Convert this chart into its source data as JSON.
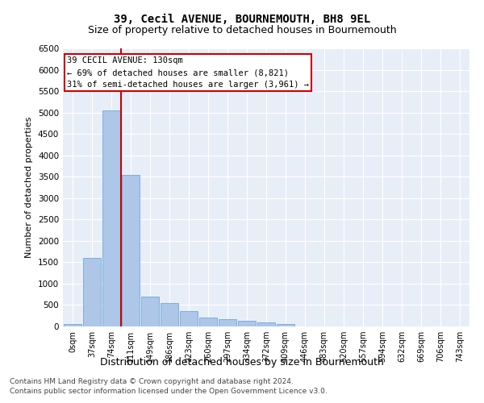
{
  "title": "39, Cecil AVENUE, BOURNEMOUTH, BH8 9EL",
  "subtitle": "Size of property relative to detached houses in Bournemouth",
  "xlabel": "Distribution of detached houses by size in Bournemouth",
  "ylabel": "Number of detached properties",
  "footnote1": "Contains HM Land Registry data © Crown copyright and database right 2024.",
  "footnote2": "Contains public sector information licensed under the Open Government Licence v3.0.",
  "bin_labels": [
    "0sqm",
    "37sqm",
    "74sqm",
    "111sqm",
    "149sqm",
    "186sqm",
    "223sqm",
    "260sqm",
    "297sqm",
    "334sqm",
    "372sqm",
    "409sqm",
    "446sqm",
    "483sqm",
    "520sqm",
    "557sqm",
    "594sqm",
    "632sqm",
    "669sqm",
    "706sqm",
    "743sqm"
  ],
  "bar_values": [
    50,
    1600,
    5050,
    3550,
    700,
    550,
    350,
    200,
    175,
    125,
    100,
    50,
    0,
    0,
    0,
    0,
    0,
    0,
    0,
    0,
    0
  ],
  "bar_color": "#aec6e8",
  "bar_edge_color": "#5a9fd4",
  "background_color": "#e8eef8",
  "grid_color": "#ffffff",
  "annotation_text": "39 CECIL AVENUE: 130sqm\n← 69% of detached houses are smaller (8,821)\n31% of semi-detached houses are larger (3,961) →",
  "annotation_box_color": "#ffffff",
  "annotation_box_edge": "#cc0000",
  "vline_color": "#cc0000",
  "ylim": [
    0,
    6500
  ],
  "yticks": [
    0,
    500,
    1000,
    1500,
    2000,
    2500,
    3000,
    3500,
    4000,
    4500,
    5000,
    5500,
    6000,
    6500
  ]
}
